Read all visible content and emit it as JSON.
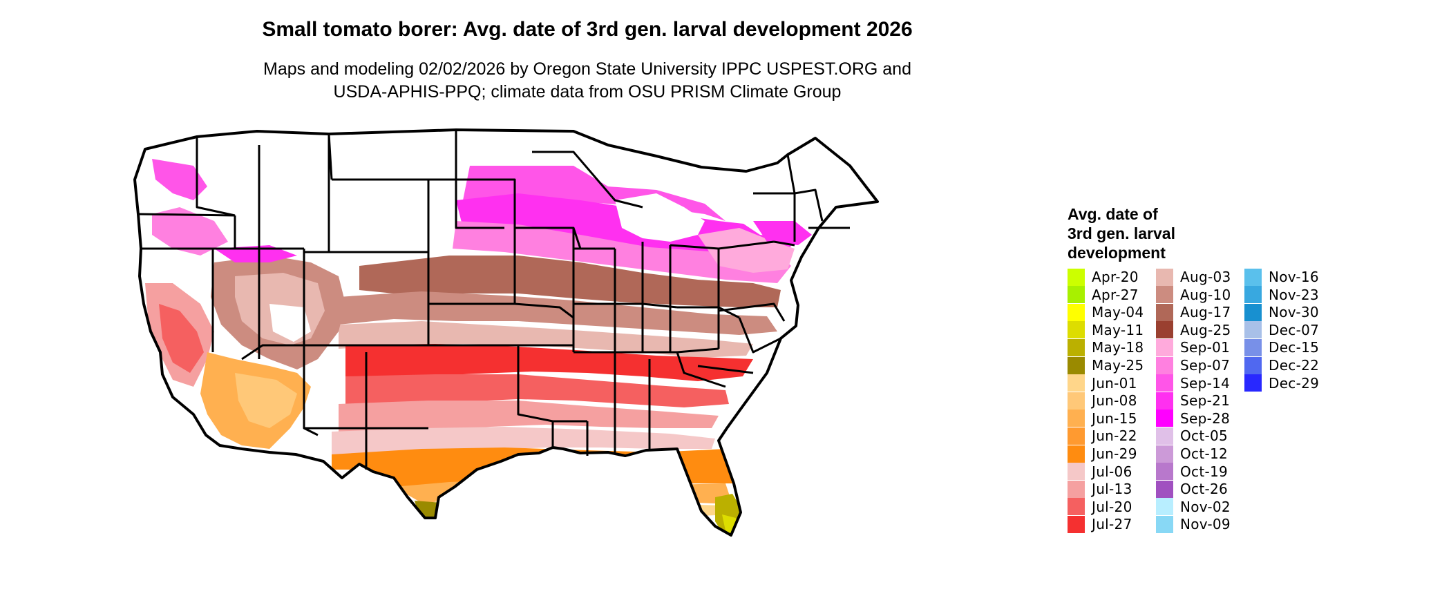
{
  "title": "Small tomato borer: Avg. date of 3rd gen. larval development 2026",
  "subtitle": [
    "Maps and modeling 02/02/2026 by Oregon State University IPPC USPEST.ORG and",
    "USDA-APHIS-PPQ; climate data from OSU PRISM Climate Group"
  ],
  "legend": {
    "title": [
      "Avg. date of",
      "3rd gen. larval",
      "development"
    ],
    "items": [
      {
        "label": "Apr-20",
        "color": "#ccff00"
      },
      {
        "label": "Apr-27",
        "color": "#a8f000"
      },
      {
        "label": "May-04",
        "color": "#ffff00"
      },
      {
        "label": "May-11",
        "color": "#dddd00"
      },
      {
        "label": "May-18",
        "color": "#bbb000"
      },
      {
        "label": "May-25",
        "color": "#9a8a00"
      },
      {
        "label": "Jun-01",
        "color": "#ffd68a"
      },
      {
        "label": "Jun-08",
        "color": "#ffc878"
      },
      {
        "label": "Jun-15",
        "color": "#ffb050"
      },
      {
        "label": "Jun-22",
        "color": "#ff9a30"
      },
      {
        "label": "Jun-29",
        "color": "#ff8c10"
      },
      {
        "label": "Jul-06",
        "color": "#f5c8c8"
      },
      {
        "label": "Jul-13",
        "color": "#f5a0a0"
      },
      {
        "label": "Jul-20",
        "color": "#f56060"
      },
      {
        "label": "Jul-27",
        "color": "#f53030"
      },
      {
        "label": "Aug-03",
        "color": "#e8b8b0"
      },
      {
        "label": "Aug-10",
        "color": "#cc8c80"
      },
      {
        "label": "Aug-17",
        "color": "#b06858"
      },
      {
        "label": "Aug-25",
        "color": "#9a4030"
      },
      {
        "label": "Sep-01",
        "color": "#ffaadc"
      },
      {
        "label": "Sep-07",
        "color": "#ff80e0"
      },
      {
        "label": "Sep-14",
        "color": "#ff55e8"
      },
      {
        "label": "Sep-21",
        "color": "#ff30f0"
      },
      {
        "label": "Sep-28",
        "color": "#ff00ff"
      },
      {
        "label": "Oct-05",
        "color": "#e0c0e8"
      },
      {
        "label": "Oct-12",
        "color": "#cc9ad8"
      },
      {
        "label": "Oct-19",
        "color": "#b878cc"
      },
      {
        "label": "Oct-26",
        "color": "#a050c0"
      },
      {
        "label": "Nov-02",
        "color": "#b8eeff"
      },
      {
        "label": "Nov-09",
        "color": "#88d8f5"
      },
      {
        "label": "Nov-16",
        "color": "#5ac0ec"
      },
      {
        "label": "Nov-23",
        "color": "#38a8e0"
      },
      {
        "label": "Nov-30",
        "color": "#1890d0"
      },
      {
        "label": "Dec-07",
        "color": "#a8c0e8"
      },
      {
        "label": "Dec-15",
        "color": "#7890e8"
      },
      {
        "label": "Dec-22",
        "color": "#5068f0"
      },
      {
        "label": "Dec-29",
        "color": "#2828ff"
      }
    ]
  }
}
